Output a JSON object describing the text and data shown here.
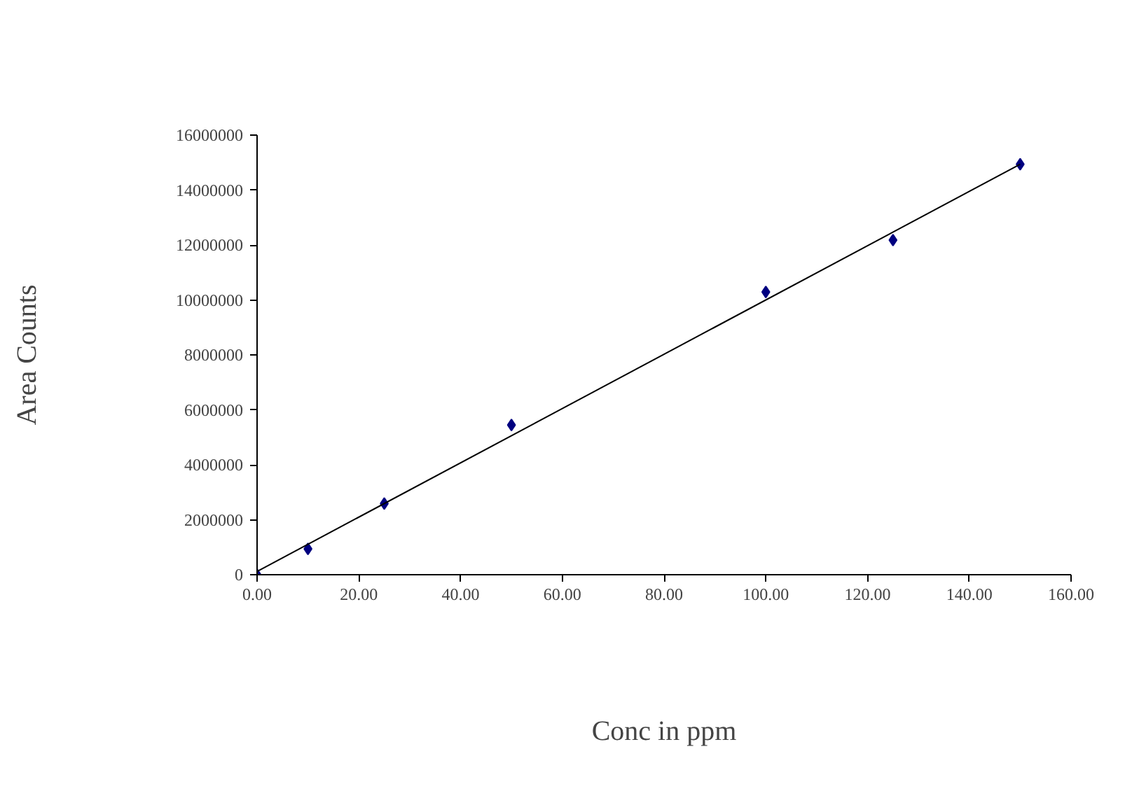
{
  "chart_data": {
    "type": "scatter",
    "xlabel": "Conc in ppm",
    "ylabel": "Area Counts",
    "xlim": [
      0,
      160
    ],
    "ylim": [
      0,
      16000000
    ],
    "xticks": [
      {
        "value": 0,
        "label": "0.00"
      },
      {
        "value": 20,
        "label": "20.00"
      },
      {
        "value": 40,
        "label": "40.00"
      },
      {
        "value": 60,
        "label": "60.00"
      },
      {
        "value": 80,
        "label": "80.00"
      },
      {
        "value": 100,
        "label": "100.00"
      },
      {
        "value": 120,
        "label": "120.00"
      },
      {
        "value": 140,
        "label": "140.00"
      },
      {
        "value": 160,
        "label": "160.00"
      }
    ],
    "yticks": [
      0,
      2000000,
      4000000,
      6000000,
      8000000,
      10000000,
      12000000,
      14000000,
      16000000
    ],
    "grid": false,
    "series": [
      {
        "marker": "diamond",
        "color": "#000080",
        "x": [
          0,
          10,
          25,
          50,
          100,
          125,
          150
        ],
        "values": [
          0,
          940000,
          2590000,
          5450000,
          10290000,
          12180000,
          14940000
        ]
      },
      {
        "type": "line",
        "color": "#000000",
        "x": [
          0,
          150
        ],
        "values": [
          120000,
          14940000
        ]
      }
    ]
  }
}
